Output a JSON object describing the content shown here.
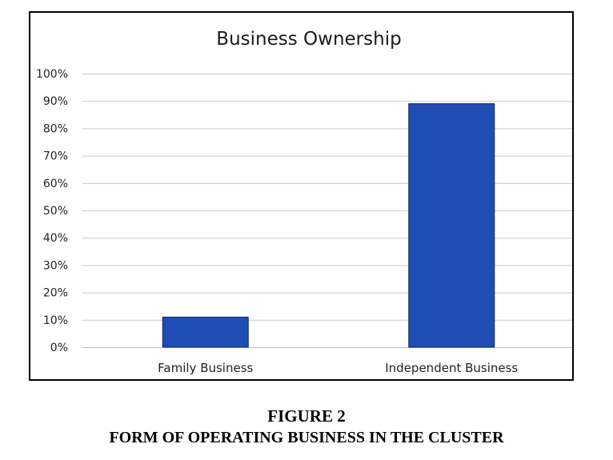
{
  "chart_data": {
    "type": "bar",
    "title": "Business Ownership",
    "categories": [
      "Family Business",
      "Independent Business"
    ],
    "values": [
      11,
      89
    ],
    "ylim": [
      0,
      100
    ],
    "yticks": [
      "0%",
      "10%",
      "20%",
      "30%",
      "40%",
      "50%",
      "60%",
      "70%",
      "80%",
      "90%",
      "100%"
    ],
    "grid": true,
    "legend": "none"
  },
  "colors": {
    "bar": "#1f4db5"
  },
  "caption": {
    "figure_number": "FIGURE 2",
    "figure_title": "FORM OF OPERATING BUSINESS IN THE CLUSTER"
  }
}
